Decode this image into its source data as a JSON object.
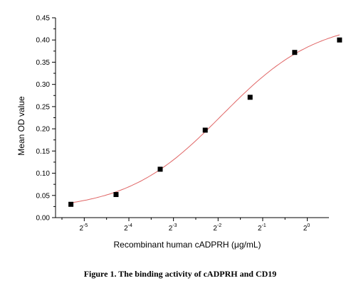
{
  "chart_data": {
    "type": "scatter",
    "title": "",
    "xlabel": "Recombinant human cADPRH (μg/mL)",
    "ylabel": "Mean OD value",
    "x_scale": "log2",
    "x_tick_base": "2",
    "x_tick_exponents": [
      "-5",
      "-4",
      "-3",
      "-2",
      "-1",
      "0"
    ],
    "xlim": [
      0.02,
      1.4
    ],
    "ylim": [
      0.0,
      0.45
    ],
    "y_ticks": [
      "0.00",
      "0.05",
      "0.10",
      "0.15",
      "0.20",
      "0.25",
      "0.30",
      "0.35",
      "0.40",
      "0.45"
    ],
    "series": [
      {
        "x": [
          0.0254,
          0.0512,
          0.1017,
          0.2047,
          0.4111,
          0.8219,
          1.65
        ],
        "y": [
          0.03,
          0.052,
          0.109,
          0.197,
          0.271,
          0.372,
          0.4
        ],
        "marker_color": "#000000",
        "fit_color": "#e06666"
      }
    ],
    "grid": false,
    "legend": "none",
    "caption": "Figure 1. The binding activity of cADPRH and CD19"
  }
}
